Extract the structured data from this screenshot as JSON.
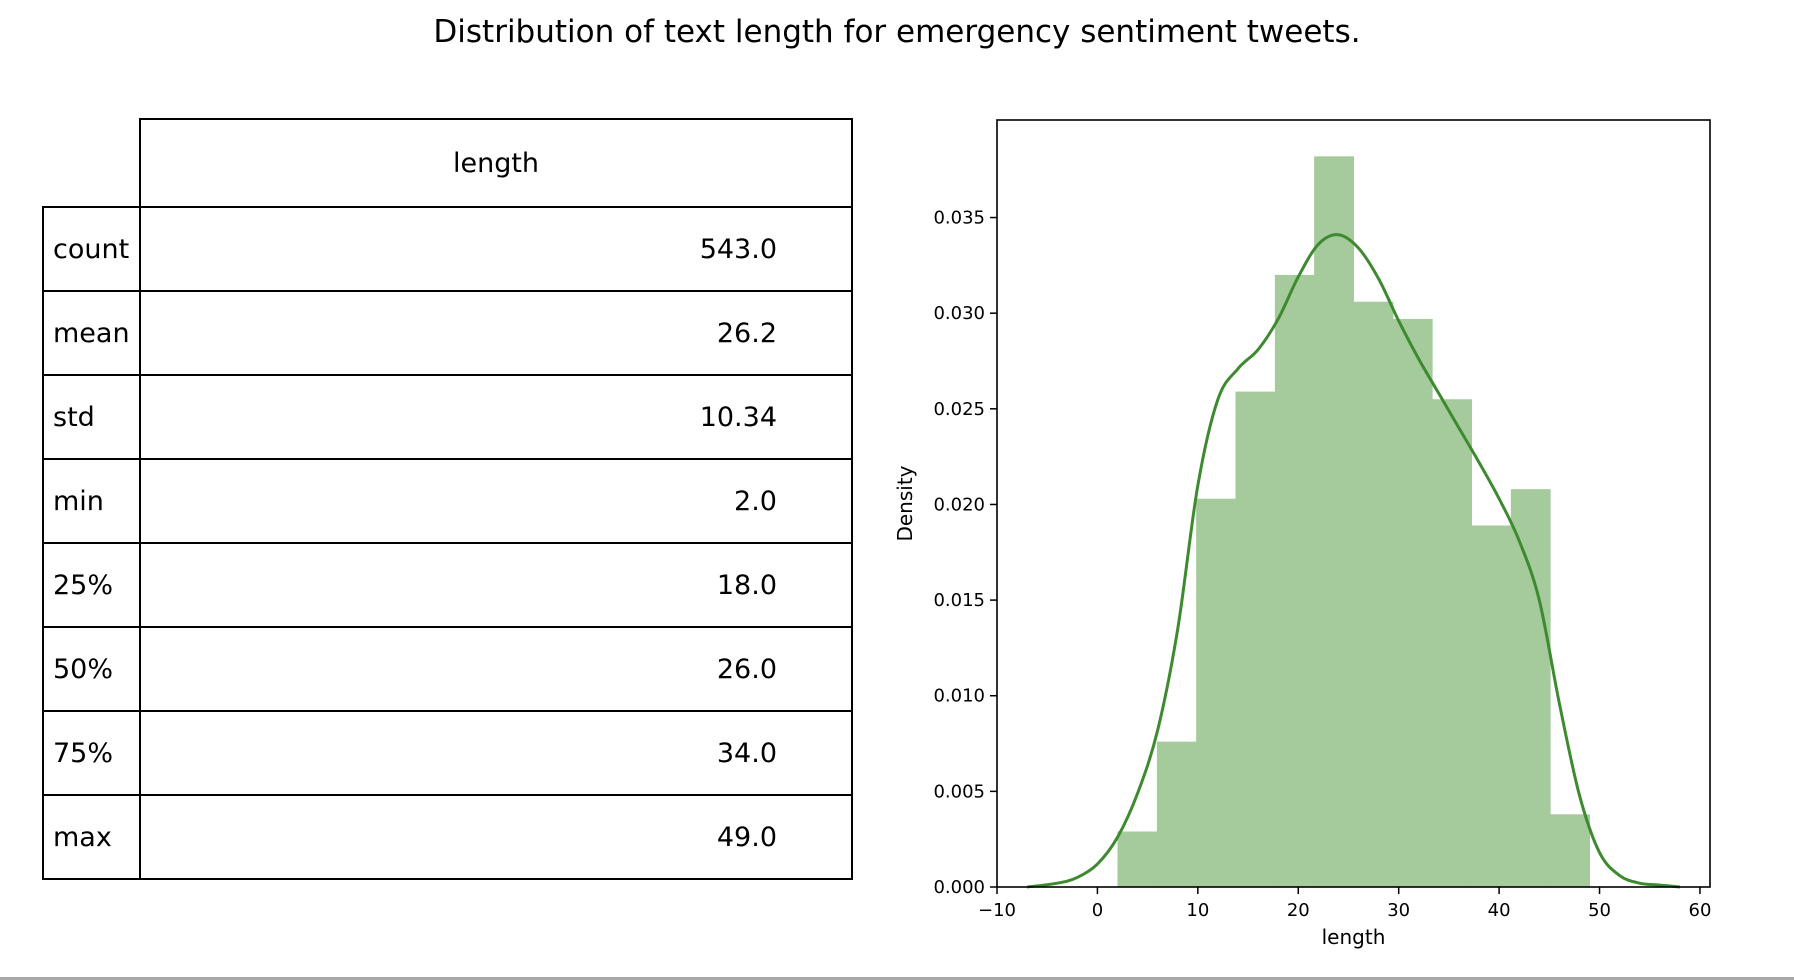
{
  "figure": {
    "title": "Distribution of text length for emergency sentiment tweets."
  },
  "table": {
    "column_header": "length",
    "rows": [
      {
        "label": "count",
        "value": "543.0"
      },
      {
        "label": "mean",
        "value": "26.2"
      },
      {
        "label": "std",
        "value": "10.34"
      },
      {
        "label": "min",
        "value": "2.0"
      },
      {
        "label": "25%",
        "value": "18.0"
      },
      {
        "label": "50%",
        "value": "26.0"
      },
      {
        "label": "75%",
        "value": "34.0"
      },
      {
        "label": "max",
        "value": "49.0"
      }
    ]
  },
  "chart_data": {
    "type": "bar",
    "xlabel": "length",
    "ylabel": "Density",
    "xlim": [
      -10,
      61
    ],
    "ylim": [
      0,
      0.0401
    ],
    "x_ticks": [
      -10,
      0,
      10,
      20,
      30,
      40,
      50,
      60
    ],
    "x_tick_labels": [
      "−10",
      "0",
      "10",
      "20",
      "30",
      "40",
      "50",
      "60"
    ],
    "y_ticks": [
      0.0,
      0.005,
      0.01,
      0.015,
      0.02,
      0.025,
      0.03,
      0.035
    ],
    "y_tick_labels": [
      "0.000",
      "0.005",
      "0.010",
      "0.015",
      "0.020",
      "0.025",
      "0.030",
      "0.035"
    ],
    "grid": false,
    "bar_color": "#a5ca9b",
    "line_color": "#3d8a30",
    "histogram": {
      "bin_edges": [
        2.0,
        5.92,
        9.83,
        13.75,
        17.67,
        21.58,
        25.5,
        29.42,
        33.33,
        37.25,
        41.17,
        45.08,
        49.0
      ],
      "density": [
        0.0029,
        0.0076,
        0.0203,
        0.0259,
        0.032,
        0.0382,
        0.0306,
        0.0297,
        0.0255,
        0.0189,
        0.0208,
        0.0038
      ]
    },
    "kde": {
      "x": [
        -7,
        -4,
        -2,
        0,
        2,
        4,
        6,
        8,
        10,
        12,
        14,
        16,
        18,
        20,
        22,
        24,
        26,
        28,
        30,
        32,
        34,
        36,
        38,
        40,
        42,
        44,
        46,
        48,
        50,
        52,
        54,
        56,
        58
      ],
      "y": [
        0.0,
        0.0002,
        0.0005,
        0.0012,
        0.0026,
        0.0049,
        0.0082,
        0.0135,
        0.021,
        0.0255,
        0.0271,
        0.0281,
        0.0297,
        0.0319,
        0.0336,
        0.0341,
        0.0334,
        0.0318,
        0.0296,
        0.0276,
        0.0258,
        0.024,
        0.0222,
        0.0203,
        0.0181,
        0.015,
        0.0096,
        0.0048,
        0.0018,
        0.0006,
        0.0002,
        0.0001,
        0.0
      ]
    }
  }
}
